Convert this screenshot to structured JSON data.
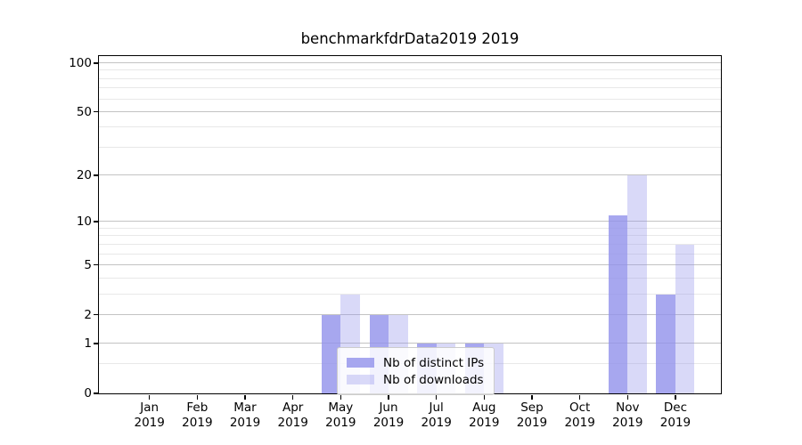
{
  "figure": {
    "title": "benchmarkfdrData2019 2019"
  },
  "chart_data": {
    "type": "bar",
    "title": "benchmarkfdrData2019 2019",
    "categories": [
      "Jan",
      "Feb",
      "Mar",
      "Apr",
      "May",
      "Jun",
      "Jul",
      "Aug",
      "Sep",
      "Oct",
      "Nov",
      "Dec"
    ],
    "category_year": "2019",
    "series": [
      {
        "name": "Nb of distinct IPs",
        "color": "rgba(145,145,235,0.80)",
        "values": [
          0,
          0,
          0,
          0,
          2,
          2,
          1,
          1,
          0,
          0,
          11,
          3
        ]
      },
      {
        "name": "Nb of downloads",
        "color": "rgba(145,145,235,0.35)",
        "values": [
          0,
          0,
          0,
          0,
          3,
          2,
          1,
          1,
          0,
          0,
          20,
          7
        ]
      }
    ],
    "xlabel": "",
    "ylabel": "",
    "yscale": "log1p",
    "ylim": [
      0,
      113
    ],
    "yticks_major": [
      0,
      1,
      2,
      5,
      10,
      20,
      50,
      100
    ],
    "yticks_minor": [
      0.5,
      3,
      4,
      6,
      7,
      8,
      9,
      30,
      40,
      60,
      70,
      80,
      90
    ],
    "grid": "horizontal",
    "legend_position": "lower-center-inside"
  },
  "legend": {
    "items": [
      {
        "label": "Nb of distinct IPs",
        "color": "rgba(145,145,235,0.80)"
      },
      {
        "label": "Nb of downloads",
        "color": "rgba(145,145,235,0.35)"
      }
    ]
  }
}
